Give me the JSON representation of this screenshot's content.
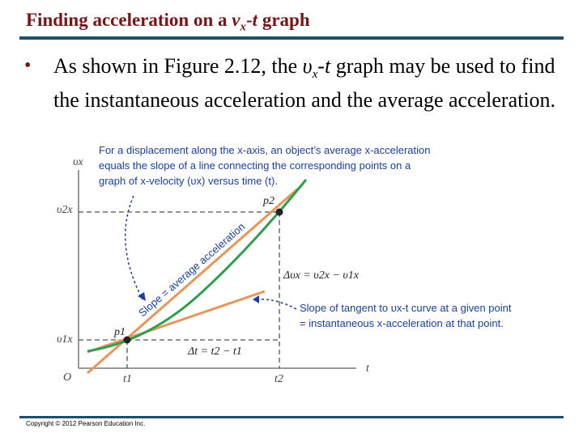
{
  "slide": {
    "title": {
      "prefix": "Finding acceleration on a ",
      "v": "v",
      "v_sub": "x",
      "suffix": "-",
      "t": "t",
      "end": " graph"
    },
    "bullet": {
      "prefix": "As shown in Figure 2.12, the ",
      "v": "υ",
      "v_sub": "x",
      "dash": "-",
      "t": "t",
      "suffix": " graph may be used to find the instantaneous acceleration and the average acceleration."
    },
    "copyright": "Copyright © 2012 Pearson Education Inc."
  },
  "figure": {
    "note_top": [
      "For a displacement along the x-axis, an object’s average x-acceleration",
      "equals the slope of a line connecting the corresponding points on a",
      "graph of x-velocity (υx) versus time (t)."
    ],
    "note_right": [
      "Slope of tangent to υx-t curve at a given point",
      "= instantaneous x-acceleration at that point."
    ],
    "slope_label": "Slope = average acceleration",
    "delta_v": "Δυx = υ2x − υ1x",
    "delta_t": "Δt = t2 − t1",
    "p1": "p1",
    "p2": "p2",
    "axis_v": "υx",
    "axis_t": "t",
    "origin": "O",
    "v1x": "υ1x",
    "v2x": "υ2x",
    "t1": "t1",
    "t2": "t2",
    "colors": {
      "curve": "#2e9e4f",
      "secant": "#e8955a",
      "note": "#1b3fa0",
      "dashed": "#555555"
    }
  }
}
